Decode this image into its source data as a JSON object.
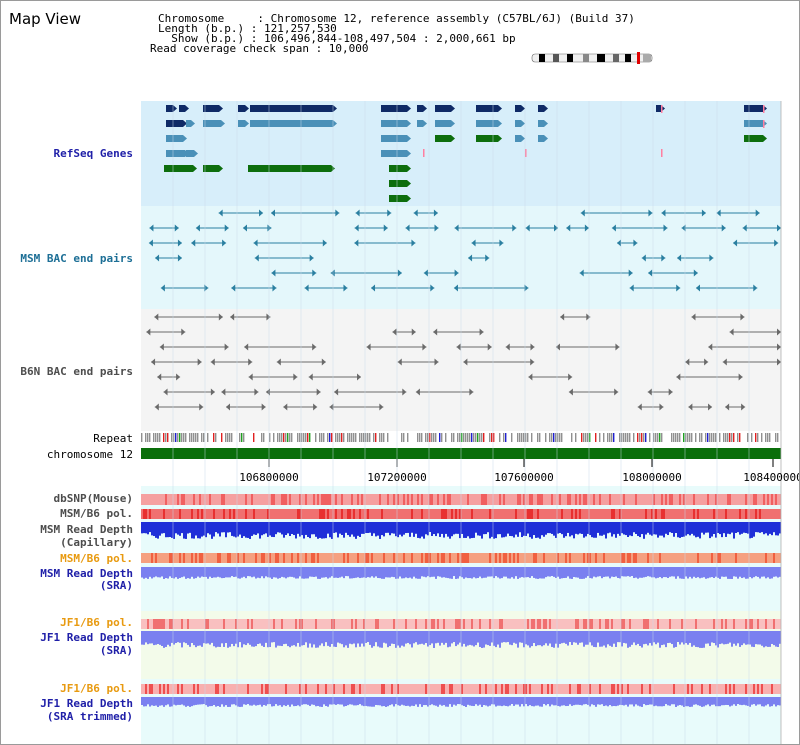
{
  "title": "Map View",
  "info": {
    "chromosome_line": "Chromosome     : Chromosome 12, reference assembly (C57BL/6J) (Build 37)",
    "length_line": "Length (b.p.) : 121,257,530",
    "show_line": "  Show (b.p.) : 106,496,844-108,497,504 : 2,000,661 bp",
    "coverage_line": "Read coverage check span : 10,000"
  },
  "tracks": {
    "refseq": "RefSeq Genes",
    "msm_bac": "MSM BAC end pairs",
    "b6n_bac": "B6N BAC end pairs",
    "repeat": "Repeat",
    "chromosome": "chromosome 12",
    "dbsnp": "dbSNP(Mouse)",
    "msm_pol": "MSM/B6 pol.",
    "msm_depth_cap_1": "MSM Read Depth",
    "msm_depth_cap_2": "(Capillary)",
    "msm_pol_2": "MSM/B6 pol.",
    "msm_depth_sra_1": "MSM Read Depth",
    "msm_depth_sra_2": "(SRA)",
    "jf1_pol": "JF1/B6 pol.",
    "jf1_depth_1": "JF1 Read Depth",
    "jf1_depth_2": "(SRA)",
    "jf1_pol_2": "JF1/B6 pol.",
    "jf1_trim_1": "JF1 Read Depth",
    "jf1_trim_2": "(SRA trimmed)"
  },
  "axis_ticks": [
    "106800000",
    "107200000",
    "107600000",
    "108000000",
    "108400000"
  ],
  "colors": {
    "gene_navy": "#0f2a66",
    "gene_blue": "#4a90b8",
    "gene_green": "#0d6e0d",
    "refseq_bg": "#d7eefa",
    "msm_bg": "#e4f7fb",
    "b6n_bg": "#f4f4f4",
    "chromosome": "#0a6e0a",
    "depth_blue": "#1f2fd8",
    "depth_lilac": "#7a80f0"
  }
}
